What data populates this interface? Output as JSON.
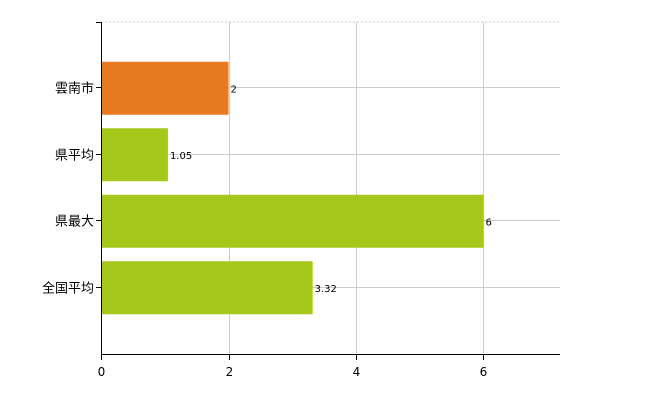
{
  "chart_data": {
    "type": "bar",
    "orientation": "horizontal",
    "categories": [
      "雲南市",
      "県平均",
      "県最大",
      "全国平均"
    ],
    "values": [
      2,
      1.05,
      6,
      3.32
    ],
    "value_labels": [
      "2",
      "1.05",
      "6",
      "3.32"
    ],
    "bar_colors": [
      "#e87a22",
      "#a5c81a",
      "#a5c81a",
      "#a5c81a"
    ],
    "xlim": [
      0,
      7.2
    ],
    "x_ticks": [
      0,
      2,
      4,
      6
    ],
    "x_tick_labels": [
      "0",
      "2",
      "4",
      "6"
    ],
    "grid": true,
    "legend": false
  }
}
